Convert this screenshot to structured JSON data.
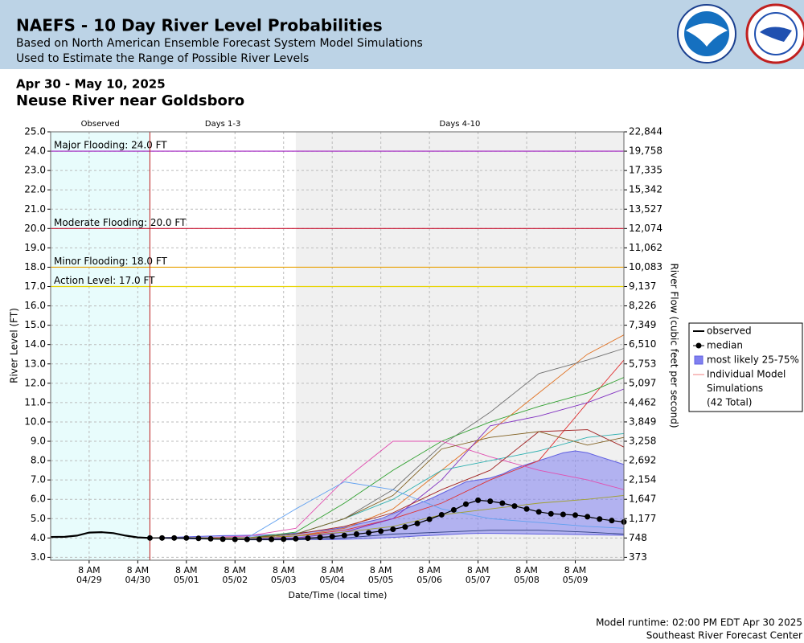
{
  "header": {
    "title": "NAEFS - 10 Day River Level Probabilities",
    "subtitles": [
      "Based on North American Ensemble Forecast System Model Simulations",
      "Used to Estimate the Range of Possible River Levels"
    ]
  },
  "chart_data": {
    "type": "line",
    "subtitle": "Apr 30 - May 10, 2025",
    "title": "Neuse River near Goldsboro",
    "ylabel": "River Level (FT)",
    "y2label": "River Flow (cubic feet per second)",
    "xlabel": "Date/Time (local time)",
    "xlim": [
      "04/28 13:00",
      "05/10 08:00"
    ],
    "ylim": [
      2.85,
      25.0
    ],
    "grid": true,
    "legend": "right",
    "xticks": [
      {
        "value": "04/29 08:00",
        "label": [
          "8 AM",
          "04/29"
        ]
      },
      {
        "value": "04/30 08:00",
        "label": [
          "8 AM",
          "04/30"
        ]
      },
      {
        "value": "05/01 08:00",
        "label": [
          "8 AM",
          "05/01"
        ]
      },
      {
        "value": "05/02 08:00",
        "label": [
          "8 AM",
          "05/02"
        ]
      },
      {
        "value": "05/03 08:00",
        "label": [
          "8 AM",
          "05/03"
        ]
      },
      {
        "value": "05/04 08:00",
        "label": [
          "8 AM",
          "05/04"
        ]
      },
      {
        "value": "05/05 08:00",
        "label": [
          "8 AM",
          "05/05"
        ]
      },
      {
        "value": "05/06 08:00",
        "label": [
          "8 AM",
          "05/06"
        ]
      },
      {
        "value": "05/07 08:00",
        "label": [
          "8 AM",
          "05/07"
        ]
      },
      {
        "value": "05/08 08:00",
        "label": [
          "8 AM",
          "05/08"
        ]
      },
      {
        "value": "05/09 08:00",
        "label": [
          "8 AM",
          "05/09"
        ]
      }
    ],
    "yticks": [
      {
        "value": 3,
        "label": "3.0"
      },
      {
        "value": 4,
        "label": "4.0"
      },
      {
        "value": 5,
        "label": "5.0"
      },
      {
        "value": 6,
        "label": "6.0"
      },
      {
        "value": 7,
        "label": "7.0"
      },
      {
        "value": 8,
        "label": "8.0"
      },
      {
        "value": 9,
        "label": "9.0"
      },
      {
        "value": 10,
        "label": "10.0"
      },
      {
        "value": 11,
        "label": "11.0"
      },
      {
        "value": 12,
        "label": "12.0"
      },
      {
        "value": 13,
        "label": "13.0"
      },
      {
        "value": 14,
        "label": "14.0"
      },
      {
        "value": 15,
        "label": "15.0"
      },
      {
        "value": 16,
        "label": "16.0"
      },
      {
        "value": 17,
        "label": "17.0"
      },
      {
        "value": 18,
        "label": "18.0"
      },
      {
        "value": 19,
        "label": "19.0"
      },
      {
        "value": 20,
        "label": "20.0"
      },
      {
        "value": 21,
        "label": "21.0"
      },
      {
        "value": 22,
        "label": "22.0"
      },
      {
        "value": 23,
        "label": "23.0"
      },
      {
        "value": 24,
        "label": "24.0"
      },
      {
        "value": 25,
        "label": "25.0"
      }
    ],
    "y2ticks": [
      373,
      748,
      {
        "value": 1177,
        "label": "1,177"
      },
      {
        "value": 1647,
        "label": "1,647"
      },
      {
        "value": 2154,
        "label": "2,154"
      },
      {
        "value": 2692,
        "label": "2,692"
      },
      {
        "value": 3258,
        "label": "3,258"
      },
      {
        "value": 3849,
        "label": "3,849"
      },
      {
        "value": 4462,
        "label": "4,462"
      },
      {
        "value": 5097,
        "label": "5,097"
      },
      {
        "value": 5753,
        "label": "5,753"
      },
      {
        "value": 6510,
        "label": "6,510"
      },
      {
        "value": 7349,
        "label": "7,349"
      },
      {
        "value": 8226,
        "label": "8,226"
      },
      {
        "value": 9137,
        "label": "9,137"
      },
      {
        "value": 10083,
        "label": "10,083"
      },
      {
        "value": 11062,
        "label": "11,062"
      },
      {
        "value": 12074,
        "label": "12,074"
      },
      {
        "value": 13527,
        "label": "13,527"
      },
      {
        "value": 15342,
        "label": "15,342"
      },
      {
        "value": 17335,
        "label": "17,335"
      },
      {
        "value": 19758,
        "label": "19,758"
      },
      {
        "value": 22844,
        "label": "22,844"
      }
    ],
    "periods": [
      {
        "name": "Observed",
        "start": "04/28 13:00",
        "end": "04/30 14:00",
        "color": "#e8fcfc"
      },
      {
        "name": "Days 1-3",
        "start": "04/30 14:00",
        "end": "05/03 14:00",
        "color": "#ffffff"
      },
      {
        "name": "Days 4-10",
        "start": "05/03 14:00",
        "end": "05/10 08:00",
        "color": "#f0f0f0"
      }
    ],
    "thresholds": [
      {
        "label": "Major Flooding: 24.0 FT",
        "value": 24.0,
        "color": "#a020c0"
      },
      {
        "label": "Moderate Flooding: 20.0 FT",
        "value": 20.0,
        "color": "#c8102e"
      },
      {
        "label": "Minor Flooding: 18.0 FT",
        "value": 18.0,
        "color": "#e8a000"
      },
      {
        "label": "Action Level: 17.0 FT",
        "value": 17.0,
        "color": "#e8d400"
      }
    ],
    "series": [
      {
        "name": "observed",
        "color": "#000000",
        "x": [
          "04/28 13:00",
          "04/28 20:00",
          "04/29 02:00",
          "04/29 08:00",
          "04/29 14:00",
          "04/29 20:00",
          "04/30 02:00",
          "04/30 08:00",
          "04/30 14:00"
        ],
        "values": [
          4.05,
          4.06,
          4.12,
          4.28,
          4.3,
          4.25,
          4.12,
          4.03,
          4.0
        ]
      },
      {
        "name": "median",
        "color": "#000000",
        "x": [
          "04/30 14:00",
          "04/30 20:00",
          "05/01 02:00",
          "05/01 08:00",
          "05/01 14:00",
          "05/01 20:00",
          "05/02 02:00",
          "05/02 08:00",
          "05/02 14:00",
          "05/02 20:00",
          "05/03 02:00",
          "05/03 08:00",
          "05/03 14:00",
          "05/03 20:00",
          "05/04 02:00",
          "05/04 08:00",
          "05/04 14:00",
          "05/04 20:00",
          "05/05 02:00",
          "05/05 08:00",
          "05/05 14:00",
          "05/05 20:00",
          "05/06 02:00",
          "05/06 08:00",
          "05/06 14:00",
          "05/06 20:00",
          "05/07 02:00",
          "05/07 08:00",
          "05/07 14:00",
          "05/07 20:00",
          "05/08 02:00",
          "05/08 08:00",
          "05/08 14:00",
          "05/08 20:00",
          "05/09 02:00",
          "05/09 08:00",
          "05/09 14:00",
          "05/09 20:00",
          "05/10 02:00",
          "05/10 08:00"
        ],
        "values": [
          4.0,
          4.0,
          4.0,
          4.0,
          3.98,
          3.96,
          3.94,
          3.93,
          3.93,
          3.93,
          3.93,
          3.94,
          3.96,
          3.99,
          4.03,
          4.07,
          4.13,
          4.2,
          4.27,
          4.35,
          4.45,
          4.57,
          4.75,
          4.97,
          5.2,
          5.45,
          5.75,
          5.95,
          5.9,
          5.8,
          5.65,
          5.5,
          5.35,
          5.25,
          5.22,
          5.18,
          5.1,
          4.98,
          4.9,
          4.83
        ]
      },
      {
        "name": "most likely 25-75%",
        "color": "#8080f0",
        "x": [
          "04/30 14:00",
          "04/30 20:00",
          "05/01 02:00",
          "05/01 08:00",
          "05/01 14:00",
          "05/01 20:00",
          "05/02 02:00",
          "05/02 08:00",
          "05/02 14:00",
          "05/02 20:00",
          "05/03 02:00",
          "05/03 08:00",
          "05/03 14:00",
          "05/03 20:00",
          "05/04 02:00",
          "05/04 08:00",
          "05/04 14:00",
          "05/04 20:00",
          "05/05 02:00",
          "05/05 08:00",
          "05/05 14:00",
          "05/05 20:00",
          "05/06 02:00",
          "05/06 08:00",
          "05/06 14:00",
          "05/06 20:00",
          "05/07 02:00",
          "05/07 08:00",
          "05/07 14:00",
          "05/07 20:00",
          "05/08 02:00",
          "05/08 08:00",
          "05/08 14:00",
          "05/08 20:00",
          "05/09 02:00",
          "05/09 08:00",
          "05/09 14:00",
          "05/09 20:00",
          "05/10 02:00",
          "05/10 08:00"
        ],
        "upper": [
          4.0,
          4.02,
          4.04,
          4.06,
          4.08,
          4.1,
          4.12,
          4.13,
          4.14,
          4.15,
          4.17,
          4.2,
          4.25,
          4.3,
          4.38,
          4.45,
          4.55,
          4.7,
          4.85,
          5.0,
          5.25,
          5.5,
          5.75,
          6.0,
          6.3,
          6.6,
          6.9,
          7.0,
          7.1,
          7.3,
          7.6,
          7.8,
          8.0,
          8.2,
          8.4,
          8.5,
          8.4,
          8.2,
          8.0,
          7.8
        ],
        "lower": [
          4.0,
          3.99,
          3.98,
          3.97,
          3.96,
          3.95,
          3.94,
          3.93,
          3.92,
          3.92,
          3.92,
          3.92,
          3.92,
          3.92,
          3.92,
          3.92,
          3.93,
          3.95,
          3.97,
          4.0,
          4.03,
          4.06,
          4.1,
          4.13,
          4.16,
          4.19,
          4.22,
          4.24,
          4.24,
          4.23,
          4.22,
          4.21,
          4.2,
          4.2,
          4.19,
          4.18,
          4.17,
          4.16,
          4.15,
          4.14
        ]
      },
      {
        "name": [
          "Individual Model",
          "Simulations",
          "(42 Total)"
        ],
        "color": "#f08080"
      }
    ],
    "members_x": [
      "04/30 14:00",
      "05/01 14:00",
      "05/02 14:00",
      "05/03 14:00",
      "05/04 14:00",
      "05/05 14:00",
      "05/06 14:00",
      "05/07 14:00",
      "05/08 14:00",
      "05/09 14:00",
      "05/10 08:00"
    ],
    "members": [
      {
        "color": "#e07020",
        "values": [
          4.0,
          4.0,
          4.0,
          4.1,
          4.5,
          5.5,
          7.5,
          9.5,
          11.5,
          13.5,
          14.5
        ]
      },
      {
        "color": "#707070",
        "values": [
          4.0,
          4.0,
          4.0,
          4.2,
          5.0,
          6.5,
          8.8,
          10.5,
          12.5,
          13.2,
          13.8
        ]
      },
      {
        "color": "#e03030",
        "values": [
          4.0,
          4.0,
          4.0,
          4.1,
          4.4,
          5.0,
          5.8,
          7.0,
          8.0,
          11.0,
          13.2
        ]
      },
      {
        "color": "#30a030",
        "values": [
          4.0,
          4.0,
          4.0,
          4.3,
          5.8,
          7.5,
          9.0,
          10.0,
          10.8,
          11.5,
          12.3
        ]
      },
      {
        "color": "#8030c0",
        "values": [
          4.0,
          4.0,
          4.0,
          4.0,
          4.3,
          5.0,
          7.0,
          9.8,
          10.3,
          11.0,
          11.7
        ]
      },
      {
        "color": "#e050b0",
        "values": [
          4.0,
          4.0,
          4.1,
          4.5,
          7.0,
          9.0,
          9.0,
          8.2,
          7.5,
          7.0,
          6.5
        ]
      },
      {
        "color": "#30b0b0",
        "values": [
          4.0,
          4.0,
          4.0,
          4.2,
          5.0,
          6.0,
          7.5,
          8.0,
          8.5,
          9.2,
          9.4
        ]
      },
      {
        "color": "#60a0f0",
        "values": [
          4.0,
          4.0,
          4.0,
          5.5,
          6.9,
          6.5,
          5.5,
          5.0,
          4.8,
          4.6,
          4.5
        ]
      },
      {
        "color": "#a02020",
        "values": [
          4.0,
          4.0,
          4.0,
          4.2,
          4.6,
          5.3,
          6.5,
          7.5,
          9.5,
          9.6,
          8.7
        ]
      },
      {
        "color": "#806020",
        "values": [
          4.0,
          4.0,
          4.0,
          4.2,
          5.0,
          6.2,
          8.6,
          9.2,
          9.5,
          8.8,
          9.2
        ]
      },
      {
        "color": "#a0a030",
        "values": [
          4.0,
          4.0,
          4.0,
          4.1,
          4.3,
          4.6,
          5.2,
          5.5,
          5.8,
          6.0,
          6.2
        ]
      },
      {
        "color": "#304080",
        "values": [
          4.0,
          3.95,
          3.9,
          3.9,
          4.0,
          4.2,
          4.3,
          4.4,
          4.4,
          4.3,
          4.2
        ]
      }
    ]
  },
  "footer": [
    "Model runtime: 02:00 PM EDT Apr 30 2025",
    "Southeast River Forecast Center"
  ]
}
